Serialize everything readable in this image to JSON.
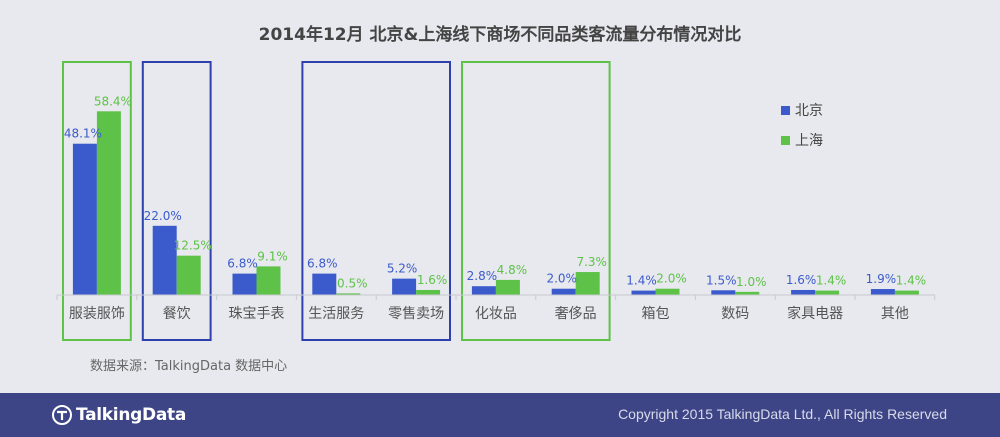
{
  "chart_data": {
    "type": "bar",
    "title": "2014年12月  北京&上海线下商场不同品类客流量分布情况对比",
    "categories": [
      "服装服饰",
      "餐饮",
      "珠宝手表",
      "生活服务",
      "零售卖场",
      "化妆品",
      "奢侈品",
      "箱包",
      "数码",
      "家具电器",
      "其他"
    ],
    "series": [
      {
        "name": "北京",
        "color": "#3b5bcc",
        "values": [
          48.1,
          22.0,
          6.8,
          6.8,
          5.2,
          2.8,
          2.0,
          1.4,
          1.5,
          1.6,
          1.9
        ],
        "labels": [
          "48.1%",
          "22.0%",
          "6.8%",
          "6.8%",
          "5.2%",
          "2.8%",
          "2.0%",
          "1.4%",
          "1.5%",
          "1.6%",
          "1.9%"
        ]
      },
      {
        "name": "上海",
        "color": "#5dc247",
        "values": [
          58.4,
          12.5,
          9.1,
          0.5,
          1.6,
          4.8,
          7.3,
          2.0,
          1.0,
          1.4,
          1.4
        ],
        "labels": [
          "58.4%",
          "12.5%",
          "9.1%",
          "0.5%",
          "1.6%",
          "4.8%",
          "7.3%",
          "2.0%",
          "1.0%",
          "1.4%",
          "1.4%"
        ]
      }
    ],
    "ylim": [
      0,
      62
    ],
    "grid": false,
    "legend_position": "top-right",
    "highlight_groups": [
      {
        "color": "#5dc247",
        "categories": [
          "服装服饰"
        ]
      },
      {
        "color": "#2e3fae",
        "categories": [
          "餐饮"
        ]
      },
      {
        "color": "#2e3fae",
        "categories": [
          "生活服务",
          "零售卖场"
        ]
      },
      {
        "color": "#5dc247",
        "categories": [
          "化妆品",
          "奢侈品"
        ]
      }
    ]
  },
  "source_note": "数据来源：TalkingData 数据中心",
  "footer": {
    "brand": "TalkingData",
    "copyright": "Copyright 2015 TalkingData Ltd., All Rights Reserved",
    "background_color": "#3d4587"
  },
  "colors": {
    "background": "#e8e9ee",
    "axis": "#c8c9cf",
    "category_text": "#555555",
    "title_text": "#444444"
  }
}
